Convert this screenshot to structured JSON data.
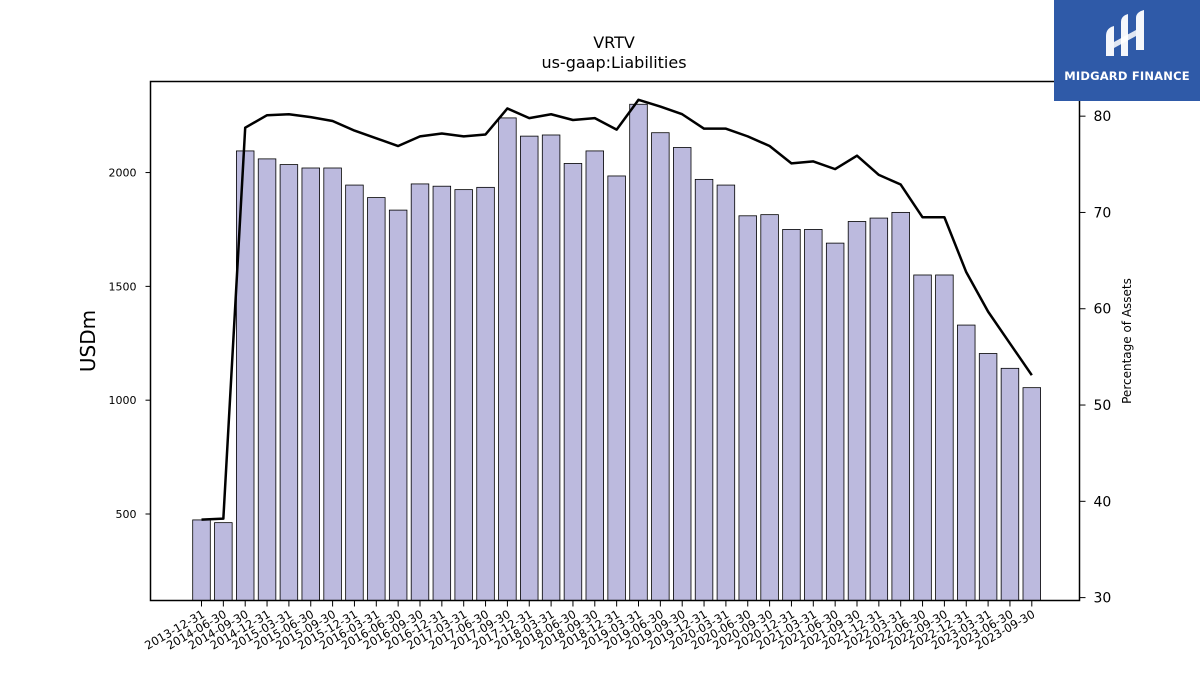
{
  "logo": {
    "text": "MIDGARD FINANCE",
    "bg_color": "#2f5aa8"
  },
  "chart_data": {
    "type": "bar",
    "title": "VRTV",
    "subtitle": "us-gaap:Liabilities",
    "ylabel": "USDm",
    "y2label": "Percentage of Assets",
    "ylim": [
      120,
      2400
    ],
    "y2lim": [
      29.7,
      83.6
    ],
    "yticks": [
      500,
      1000,
      1500,
      2000
    ],
    "y2ticks": [
      30,
      40,
      50,
      60,
      70,
      80
    ],
    "bar_color": "#bcbade",
    "line_color": "#000000",
    "categories": [
      "2013-12-31",
      "2014-06-30",
      "2014-09-30",
      "2014-12-31",
      "2015-03-31",
      "2015-06-30",
      "2015-09-30",
      "2015-12-31",
      "2016-03-31",
      "2016-06-30",
      "2016-09-30",
      "2016-12-31",
      "2017-03-31",
      "2017-06-30",
      "2017-09-30",
      "2017-12-31",
      "2018-03-31",
      "2018-06-30",
      "2018-09-30",
      "2018-12-31",
      "2019-03-31",
      "2019-06-30",
      "2019-09-30",
      "2019-12-31",
      "2020-03-31",
      "2020-06-30",
      "2020-09-30",
      "2020-12-31",
      "2021-03-31",
      "2021-06-30",
      "2021-09-30",
      "2021-12-31",
      "2022-03-31",
      "2022-06-30",
      "2022-09-30",
      "2022-12-31",
      "2023-03-31",
      "2023-06-30",
      "2023-09-30"
    ],
    "series": [
      {
        "axis": "left",
        "values": [
          474,
          462,
          2095,
          2060,
          2035,
          2020,
          2020,
          1945,
          1890,
          1835,
          1950,
          1940,
          1925,
          1935,
          2240,
          2160,
          2165,
          2040,
          2095,
          1985,
          2300,
          2175,
          2110,
          1970,
          1945,
          1810,
          1815,
          1750,
          1750,
          1690,
          1785,
          1800,
          1825,
          1550,
          1550,
          1330,
          1205,
          1140,
          1055
        ]
      },
      {
        "axis": "right",
        "values": [
          38.1,
          38.2,
          78.8,
          80.1,
          80.2,
          79.9,
          79.5,
          78.5,
          77.7,
          76.9,
          77.9,
          78.2,
          77.9,
          78.1,
          80.8,
          79.8,
          80.2,
          79.6,
          79.8,
          78.6,
          81.7,
          81.0,
          80.2,
          78.7,
          78.7,
          77.9,
          76.9,
          75.1,
          75.3,
          74.5,
          75.9,
          73.9,
          72.9,
          69.5,
          69.5,
          63.8,
          59.7,
          56.4,
          53.1
        ]
      }
    ]
  }
}
